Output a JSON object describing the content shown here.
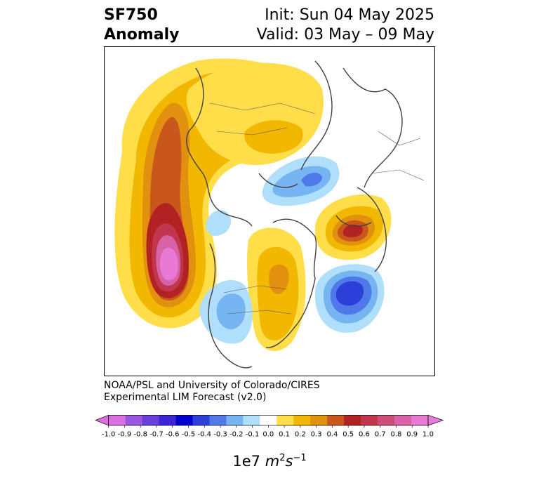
{
  "header": {
    "title_line1": "SF750",
    "title_line2": "Anomaly",
    "init_line": "Init: Sun 04 May 2025",
    "valid_line": "Valid: 03 May – 09 May"
  },
  "credit": {
    "line1": "NOAA/PSL and University of Colorado/CIRES",
    "line2": "Experimental LIM Forecast (v2.0)"
  },
  "colorbar": {
    "ticks": [
      "-1.0",
      "-0.9",
      "-0.8",
      "-0.7",
      "-0.6",
      "-0.5",
      "-0.4",
      "-0.3",
      "-0.2",
      "-0.1",
      "0.0",
      "0.1",
      "0.2",
      "0.3",
      "0.4",
      "0.5",
      "0.6",
      "0.7",
      "0.8",
      "0.9",
      "1.0"
    ],
    "colors": [
      "#dc6fe0",
      "#9c55e0",
      "#6a3fd9",
      "#3c26d6",
      "#0000cc",
      "#2b3fd9",
      "#4f79e8",
      "#77b4f2",
      "#afdffb",
      "#ffffff",
      "#ffde4a",
      "#f2b700",
      "#e1900f",
      "#c9561a",
      "#b22222",
      "#c2364d",
      "#cc4d7a",
      "#d763a6",
      "#e87ad6"
    ],
    "label_main": "1e7 ",
    "label_unit": "m",
    "label_exp1": "2",
    "label_unit2": "s",
    "label_exp2": "−1"
  }
}
